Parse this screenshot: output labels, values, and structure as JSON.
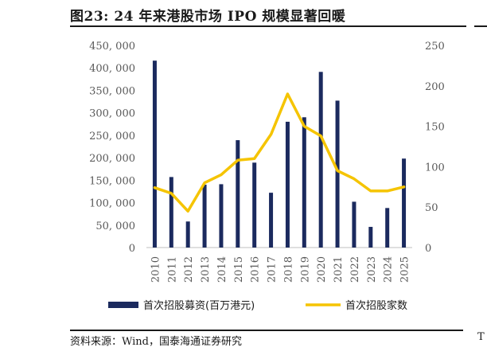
{
  "title": "图23:  24 年来港股市场 IPO 规模显著回暖",
  "source": "资料来源：Wind，国泰海通证券研究",
  "edge_mark": "T",
  "colors": {
    "bar": "#1b2a5e",
    "line": "#f5c400"
  },
  "chart_data": {
    "type": "bar+line",
    "categories": [
      "2010",
      "2011",
      "2012",
      "2013",
      "2014",
      "2015",
      "2016",
      "2017",
      "2018",
      "2019",
      "2020",
      "2021",
      "2022",
      "2023",
      "2024",
      "2025"
    ],
    "y_left": {
      "range": [
        0,
        450000
      ],
      "ticks": [
        "0",
        "50, 000",
        "100, 000",
        "150, 000",
        "200, 000",
        "250, 000",
        "300, 000",
        "350, 000",
        "400, 000",
        "450, 000"
      ]
    },
    "y_right": {
      "range": [
        0,
        250
      ],
      "ticks": [
        "0",
        "50",
        "100",
        "150",
        "200",
        "250"
      ]
    },
    "series": [
      {
        "name": "首次招股募资(百万港元)",
        "type": "bar",
        "axis": "left",
        "values": [
          416000,
          157000,
          58000,
          140000,
          141000,
          239000,
          189000,
          122000,
          280000,
          290000,
          391000,
          327000,
          102000,
          46000,
          88000,
          198000
        ]
      },
      {
        "name": "首次招股家数",
        "type": "line",
        "axis": "right",
        "values": [
          74,
          67,
          45,
          80,
          90,
          108,
          110,
          140,
          190,
          150,
          138,
          95,
          85,
          70,
          70,
          75
        ]
      }
    ],
    "legend_position": "bottom"
  }
}
